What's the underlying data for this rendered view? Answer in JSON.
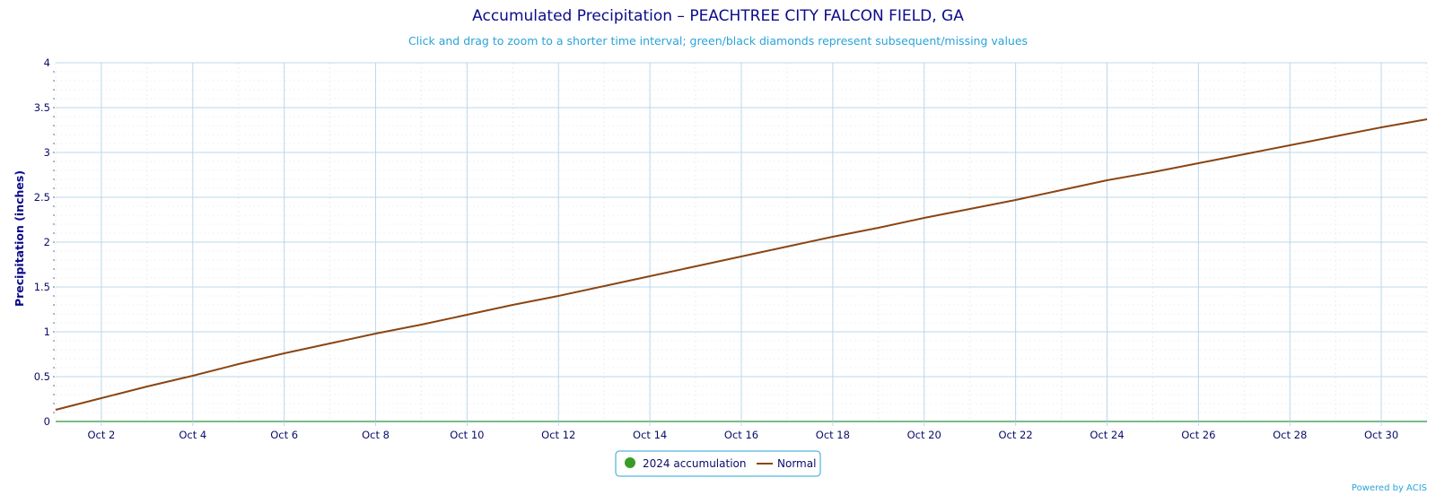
{
  "chart_data": {
    "type": "line",
    "title": "Accumulated Precipitation – PEACHTREE CITY FALCON FIELD, GA",
    "subtitle": "Click and drag to zoom to a shorter time interval; green/black diamonds represent subsequent/missing values",
    "ylabel": "Precipitation (inches)",
    "xlabel": "",
    "ylim": [
      0,
      4
    ],
    "yticks": [
      "0",
      "0.5",
      "1",
      "1.5",
      "2",
      "2.5",
      "3",
      "3.5",
      "4"
    ],
    "ytick_values": [
      0,
      0.5,
      1,
      1.5,
      2,
      2.5,
      3,
      3.5,
      4
    ],
    "xlim": [
      "Oct 1",
      "Oct 31"
    ],
    "xticks": [
      "Oct 2",
      "Oct 4",
      "Oct 6",
      "Oct 8",
      "Oct 10",
      "Oct 12",
      "Oct 14",
      "Oct 16",
      "Oct 18",
      "Oct 20",
      "Oct 22",
      "Oct 24",
      "Oct 26",
      "Oct 28",
      "Oct 30"
    ],
    "xtick_days": [
      2,
      4,
      6,
      8,
      10,
      12,
      14,
      16,
      18,
      20,
      22,
      24,
      26,
      28,
      30
    ],
    "grid": true,
    "legend_position": "bottom-center",
    "series": [
      {
        "name": "2024 accumulation",
        "color": "#3a9b29",
        "marker": "circle",
        "x": [
          "Oct 1",
          "Oct 2",
          "Oct 3",
          "Oct 4",
          "Oct 5",
          "Oct 6",
          "Oct 7",
          "Oct 8",
          "Oct 9",
          "Oct 10",
          "Oct 11",
          "Oct 12",
          "Oct 13",
          "Oct 14",
          "Oct 15",
          "Oct 16",
          "Oct 17",
          "Oct 18",
          "Oct 19",
          "Oct 20",
          "Oct 21",
          "Oct 22",
          "Oct 23",
          "Oct 24",
          "Oct 25",
          "Oct 26",
          "Oct 27",
          "Oct 28",
          "Oct 29",
          "Oct 30",
          "Oct 31"
        ],
        "values": [
          0,
          0,
          0,
          0,
          0,
          0,
          0,
          0,
          0,
          0,
          0,
          0,
          0,
          0,
          0,
          0,
          0,
          0,
          0,
          0,
          0,
          0,
          0,
          0,
          0,
          0,
          0,
          0,
          0,
          0,
          0
        ]
      },
      {
        "name": "Normal",
        "color": "#8b4513",
        "marker": "line",
        "x": [
          "Oct 1",
          "Oct 2",
          "Oct 3",
          "Oct 4",
          "Oct 5",
          "Oct 6",
          "Oct 7",
          "Oct 8",
          "Oct 9",
          "Oct 10",
          "Oct 11",
          "Oct 12",
          "Oct 13",
          "Oct 14",
          "Oct 15",
          "Oct 16",
          "Oct 17",
          "Oct 18",
          "Oct 19",
          "Oct 20",
          "Oct 21",
          "Oct 22",
          "Oct 23",
          "Oct 24",
          "Oct 25",
          "Oct 26",
          "Oct 27",
          "Oct 28",
          "Oct 29",
          "Oct 30",
          "Oct 31"
        ],
        "values": [
          0.13,
          0.26,
          0.39,
          0.51,
          0.64,
          0.76,
          0.87,
          0.98,
          1.08,
          1.19,
          1.3,
          1.4,
          1.51,
          1.62,
          1.73,
          1.84,
          1.95,
          2.06,
          2.16,
          2.27,
          2.37,
          2.47,
          2.58,
          2.69,
          2.78,
          2.88,
          2.98,
          3.08,
          3.18,
          3.28,
          3.37
        ]
      }
    ]
  },
  "legend": {
    "items": [
      "2024 accumulation",
      "Normal"
    ]
  },
  "credit": "Powered by ACIS"
}
